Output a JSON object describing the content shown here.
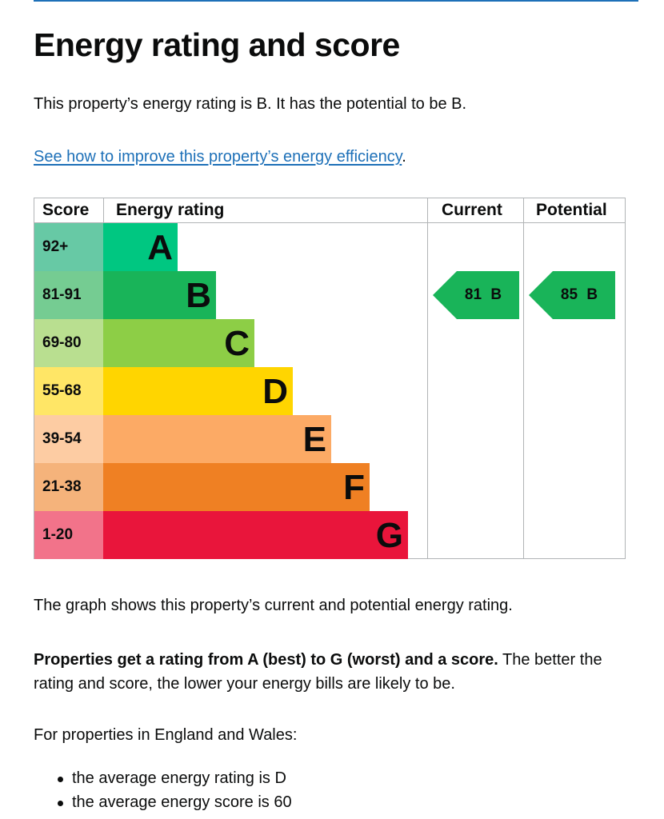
{
  "heading": "Energy rating and score",
  "intro": "This property’s energy rating is B. It has the potential to be B.",
  "improve_link": {
    "text": "See how to improve this property’s energy efficiency",
    "suffix": "."
  },
  "colors": {
    "link": "#1d70b8",
    "text": "#0b0c0c",
    "border": "#b1b4b6"
  },
  "chart_data": {
    "type": "table",
    "headers": {
      "score": "Score",
      "rating": "Energy rating",
      "current": "Current",
      "potential": "Potential"
    },
    "bands": [
      {
        "letter": "A",
        "range": "92+",
        "color": "#00c781",
        "score_bg": "#67c9a5"
      },
      {
        "letter": "B",
        "range": "81-91",
        "color": "#19b459",
        "score_bg": "#75cc92"
      },
      {
        "letter": "C",
        "range": "69-80",
        "color": "#8dce46",
        "score_bg": "#b9df90"
      },
      {
        "letter": "D",
        "range": "55-68",
        "color": "#ffd500",
        "score_bg": "#ffe666"
      },
      {
        "letter": "E",
        "range": "39-54",
        "color": "#fcaa65",
        "score_bg": "#fdcca3"
      },
      {
        "letter": "F",
        "range": "21-38",
        "color": "#ef8023",
        "score_bg": "#f5b37b"
      },
      {
        "letter": "G",
        "range": "1-20",
        "color": "#e9153b",
        "score_bg": "#f2738a"
      }
    ],
    "current": {
      "score": 81,
      "band": "B",
      "label": "81 B"
    },
    "potential": {
      "score": 85,
      "band": "B",
      "label": "85 B"
    }
  },
  "graph_description": "The graph shows this property’s current and potential energy rating.",
  "rating_info": {
    "bold": "Properties get a rating from A (best) to G (worst) and a score.",
    "rest": " The better the rating and score, the lower your energy bills are likely to be."
  },
  "england_wales_intro": "For properties in England and Wales:",
  "averages": [
    "the average energy rating is D",
    "the average energy score is 60"
  ]
}
